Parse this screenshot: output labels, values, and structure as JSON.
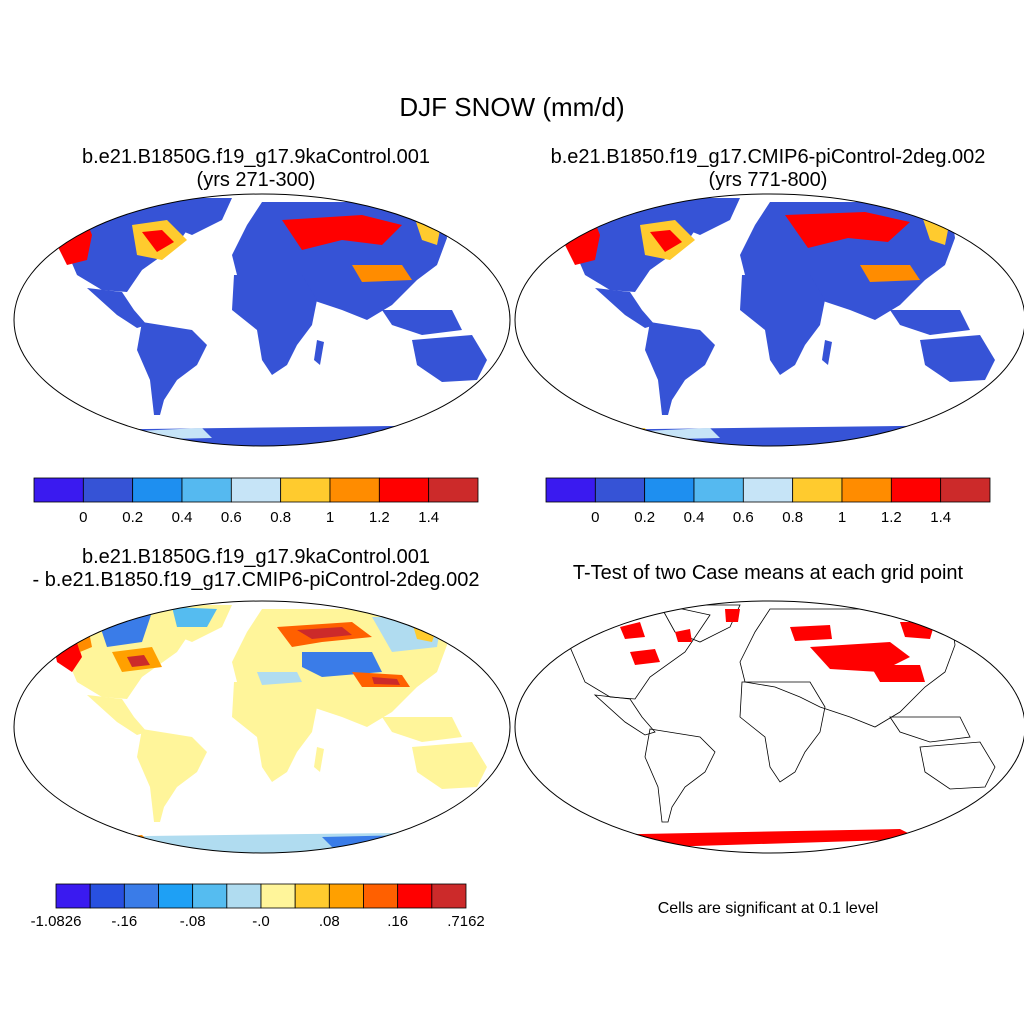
{
  "figure": {
    "title": "DJF SNOW (mm/d)"
  },
  "panels": [
    {
      "id": "case1",
      "title_line1": "b.e21.B1850G.f19_g17.9kaControl.001",
      "title_line2": "(yrs 271-300)"
    },
    {
      "id": "case2",
      "title_line1": "b.e21.B1850.f19_g17.CMIP6-piControl-2deg.002",
      "title_line2": "(yrs 771-800)"
    },
    {
      "id": "difference",
      "title_line1": "b.e21.B1850G.f19_g17.9kaControl.001",
      "title_line2": "- b.e21.B1850.f19_g17.CMIP6-piControl-2deg.002"
    },
    {
      "id": "ttest",
      "title_line1": "T-Test of two Case means at each grid point",
      "note": "Cells are significant at 0.1 level"
    }
  ],
  "colorbars": {
    "absolute": {
      "colors": [
        "#3a1af0",
        "#3653d6",
        "#1e8ff0",
        "#55b9f0",
        "#c6e4f7",
        "#ffcb2e",
        "#ff8c00",
        "#ff0000",
        "#cc2a2a"
      ],
      "labels": [
        "0",
        "0.2",
        "0.4",
        "0.6",
        "0.8",
        "1",
        "1.2",
        "1.4"
      ]
    },
    "difference": {
      "colors": [
        "#3a1af0",
        "#2850e0",
        "#3a7ce8",
        "#1ea0f5",
        "#55bcf0",
        "#b0dcf0",
        "#fff59a",
        "#ffcb2e",
        "#ffa000",
        "#ff6000",
        "#ff0000",
        "#cc2a2a"
      ],
      "labels": [
        "-1.0826",
        "-.16",
        "-.08",
        "-.0",
        ".08",
        ".16",
        ".7162"
      ]
    }
  },
  "palette": {
    "land_low": "#3653d6",
    "ocean": "#ffffff",
    "diff_land": "#fff59a",
    "significant": "#ff0000"
  }
}
